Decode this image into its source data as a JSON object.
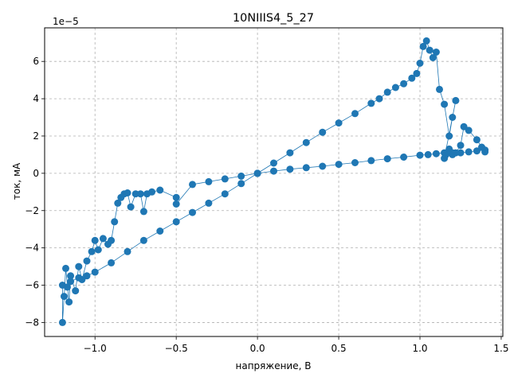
{
  "chart_data": {
    "type": "scatter",
    "title": "10NIIIS4_5_27",
    "xlabel": "напряжение, В",
    "ylabel": "ток, мА",
    "offset_text": "1e−5",
    "xlim": [
      -1.31,
      1.51
    ],
    "ylim": [
      -8.75,
      7.8
    ],
    "x_ticks": [
      -1.0,
      -0.5,
      0.0,
      0.5,
      1.0,
      1.5
    ],
    "x_tick_labels": [
      "−1.0",
      "−0.5",
      "0.0",
      "0.5",
      "1.0",
      "1.5"
    ],
    "y_ticks": [
      -8,
      -6,
      -4,
      -2,
      0,
      2,
      4,
      6
    ],
    "y_tick_labels": [
      "−8",
      "−6",
      "−4",
      "−2",
      "0",
      "2",
      "4",
      "6"
    ],
    "grid": true,
    "marker": "circle",
    "color": "#1f77b4",
    "series": [
      {
        "values": [
          [
            0.0,
            0.0
          ],
          [
            0.1,
            0.12
          ],
          [
            0.2,
            0.22
          ],
          [
            0.3,
            0.3
          ],
          [
            0.4,
            0.38
          ],
          [
            0.5,
            0.48
          ],
          [
            0.6,
            0.57
          ],
          [
            0.7,
            0.68
          ],
          [
            0.8,
            0.78
          ],
          [
            0.9,
            0.87
          ],
          [
            1.0,
            0.97
          ],
          [
            1.05,
            1.0
          ],
          [
            1.1,
            1.05
          ],
          [
            1.15,
            1.1
          ],
          [
            1.2,
            1.1
          ],
          [
            1.25,
            1.1
          ],
          [
            1.3,
            1.15
          ],
          [
            1.35,
            1.2
          ],
          [
            1.4,
            1.25
          ],
          [
            1.4,
            1.15
          ],
          [
            1.38,
            1.4
          ],
          [
            1.35,
            1.8
          ],
          [
            1.3,
            2.3
          ],
          [
            1.27,
            2.5
          ],
          [
            1.25,
            1.5
          ],
          [
            1.22,
            1.1
          ],
          [
            1.2,
            1.0
          ],
          [
            1.18,
            1.3
          ],
          [
            1.16,
            1.0
          ],
          [
            1.15,
            0.8
          ],
          [
            1.22,
            3.9
          ],
          [
            1.2,
            3.0
          ],
          [
            1.18,
            2.0
          ],
          [
            1.15,
            3.7
          ],
          [
            1.12,
            4.5
          ],
          [
            1.1,
            6.5
          ],
          [
            1.08,
            6.2
          ],
          [
            1.06,
            6.6
          ],
          [
            1.04,
            7.1
          ],
          [
            1.02,
            6.8
          ],
          [
            1.0,
            5.9
          ],
          [
            0.98,
            5.35
          ],
          [
            0.95,
            5.1
          ],
          [
            0.9,
            4.8
          ],
          [
            0.85,
            4.6
          ],
          [
            0.8,
            4.35
          ],
          [
            0.75,
            4.0
          ],
          [
            0.7,
            3.75
          ],
          [
            0.6,
            3.2
          ],
          [
            0.5,
            2.7
          ],
          [
            0.4,
            2.2
          ],
          [
            0.3,
            1.65
          ],
          [
            0.2,
            1.1
          ],
          [
            0.1,
            0.55
          ],
          [
            0.0,
            0.0
          ],
          [
            -0.1,
            -0.55
          ],
          [
            -0.2,
            -1.1
          ],
          [
            -0.3,
            -1.6
          ],
          [
            -0.4,
            -2.1
          ],
          [
            -0.5,
            -2.6
          ],
          [
            -0.6,
            -3.1
          ],
          [
            -0.7,
            -3.6
          ],
          [
            -0.8,
            -4.2
          ],
          [
            -0.9,
            -4.8
          ],
          [
            -1.0,
            -5.3
          ],
          [
            -1.05,
            -5.5
          ],
          [
            -1.1,
            -5.6
          ],
          [
            -1.15,
            -5.8
          ],
          [
            -1.17,
            -6.1
          ],
          [
            -1.2,
            -6.0
          ],
          [
            -1.2,
            -8.0
          ],
          [
            -1.19,
            -6.6
          ],
          [
            -1.18,
            -5.1
          ],
          [
            -1.16,
            -6.9
          ],
          [
            -1.15,
            -5.5
          ],
          [
            -1.12,
            -6.3
          ],
          [
            -1.1,
            -5.0
          ],
          [
            -1.08,
            -5.7
          ],
          [
            -1.05,
            -4.7
          ],
          [
            -1.02,
            -4.2
          ],
          [
            -1.0,
            -3.6
          ],
          [
            -0.98,
            -4.1
          ],
          [
            -0.95,
            -3.5
          ],
          [
            -0.92,
            -3.8
          ],
          [
            -0.9,
            -3.6
          ],
          [
            -0.88,
            -2.6
          ],
          [
            -0.86,
            -1.6
          ],
          [
            -0.84,
            -1.3
          ],
          [
            -0.82,
            -1.1
          ],
          [
            -0.8,
            -1.05
          ],
          [
            -0.78,
            -1.8
          ],
          [
            -0.75,
            -1.1
          ],
          [
            -0.72,
            -1.1
          ],
          [
            -0.7,
            -2.05
          ],
          [
            -0.68,
            -1.1
          ],
          [
            -0.65,
            -1.0
          ],
          [
            -0.6,
            -0.9
          ],
          [
            -0.5,
            -1.3
          ],
          [
            -0.5,
            -1.65
          ],
          [
            -0.4,
            -0.6
          ],
          [
            -0.3,
            -0.45
          ],
          [
            -0.2,
            -0.3
          ],
          [
            -0.1,
            -0.15
          ],
          [
            0.0,
            0.0
          ]
        ]
      }
    ]
  }
}
